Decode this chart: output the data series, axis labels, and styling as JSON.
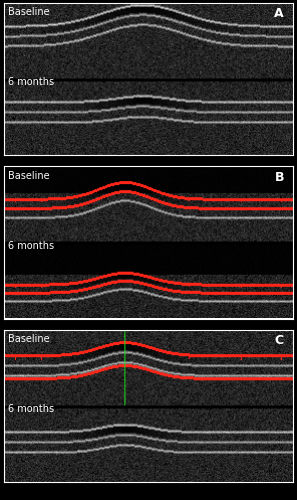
{
  "panel_labels": [
    "A",
    "B",
    "C"
  ],
  "top_labels": [
    "Baseline",
    "Baseline",
    "Baseline"
  ],
  "bottom_labels": [
    "6 months",
    "6 months",
    "6 months"
  ],
  "label_color": "white",
  "background_color": "black",
  "border_color": "white",
  "fig_width": 2.97,
  "fig_height": 5.0,
  "dpi": 100,
  "label_fontsize": 7,
  "panel_label_fontsize": 9,
  "noise_mean": 0.12,
  "noise_std": 0.055
}
